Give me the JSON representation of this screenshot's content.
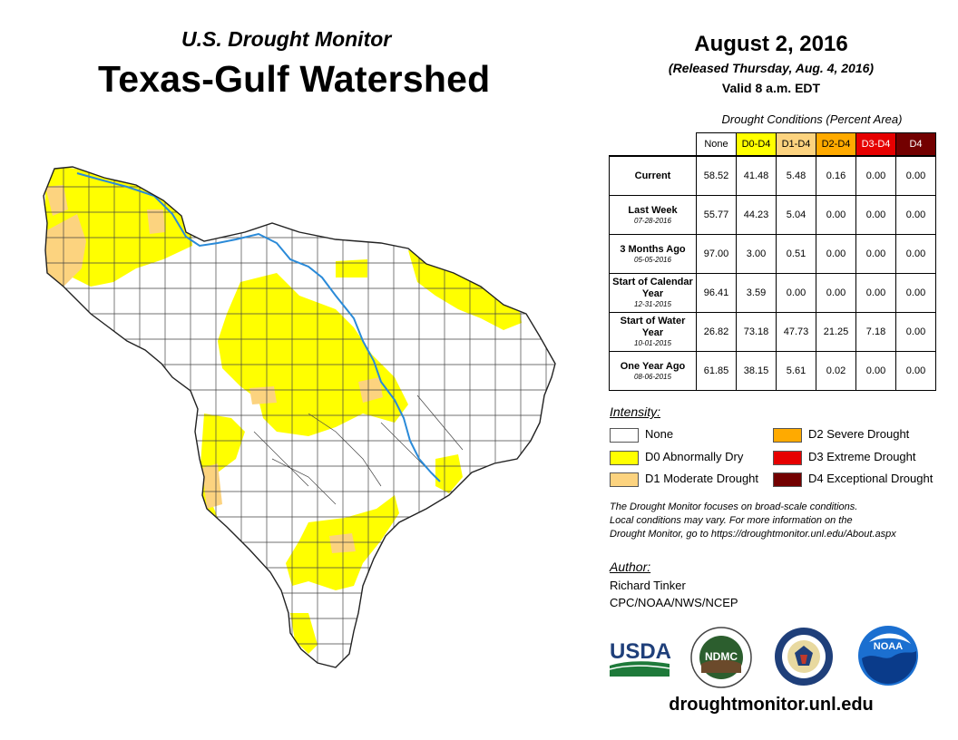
{
  "header": {
    "subtitle": "U.S. Drought Monitor",
    "title": "Texas-Gulf Watershed",
    "date": "August 2, 2016",
    "released": "(Released Thursday, Aug. 4, 2016)",
    "valid": "Valid 8 a.m. EDT"
  },
  "table": {
    "caption": "Drought Conditions (Percent Area)",
    "columns": [
      "None",
      "D0-D4",
      "D1-D4",
      "D2-D4",
      "D3-D4",
      "D4"
    ],
    "column_colors": [
      "#ffffff",
      "#ffff00",
      "#fcd37f",
      "#ffaa00",
      "#e60000",
      "#730000"
    ],
    "rows": [
      {
        "label": "Current",
        "sub": "",
        "values": [
          "58.52",
          "41.48",
          "5.48",
          "0.16",
          "0.00",
          "0.00"
        ]
      },
      {
        "label": "Last Week",
        "sub": "07-28-2016",
        "values": [
          "55.77",
          "44.23",
          "5.04",
          "0.00",
          "0.00",
          "0.00"
        ]
      },
      {
        "label": "3 Months Ago",
        "sub": "05-05-2016",
        "values": [
          "97.00",
          "3.00",
          "0.51",
          "0.00",
          "0.00",
          "0.00"
        ]
      },
      {
        "label": "Start of Calendar Year",
        "sub": "12-31-2015",
        "values": [
          "96.41",
          "3.59",
          "0.00",
          "0.00",
          "0.00",
          "0.00"
        ]
      },
      {
        "label": "Start of Water Year",
        "sub": "10-01-2015",
        "values": [
          "26.82",
          "73.18",
          "47.73",
          "21.25",
          "7.18",
          "0.00"
        ]
      },
      {
        "label": "One Year Ago",
        "sub": "08-06-2015",
        "values": [
          "61.85",
          "38.15",
          "5.61",
          "0.02",
          "0.00",
          "0.00"
        ]
      }
    ]
  },
  "legend": {
    "title": "Intensity:",
    "items": [
      {
        "label": "None",
        "color": "#ffffff"
      },
      {
        "label": "D0 Abnormally Dry",
        "color": "#ffff00"
      },
      {
        "label": "D1 Moderate Drought",
        "color": "#fcd37f"
      },
      {
        "label": "D2 Severe Drought",
        "color": "#ffaa00"
      },
      {
        "label": "D3 Extreme Drought",
        "color": "#e60000"
      },
      {
        "label": "D4 Exceptional Drought",
        "color": "#730000"
      }
    ]
  },
  "note": {
    "line1": "The Drought Monitor focuses on broad-scale conditions.",
    "line2": "Local conditions may vary. For more information on the",
    "line3": "Drought Monitor, go to https://droughtmonitor.unl.edu/About.aspx"
  },
  "author": {
    "label": "Author:",
    "name": "Richard Tinker",
    "org": "CPC/NOAA/NWS/NCEP"
  },
  "logos": {
    "usda": "USDA",
    "ndmc": "NDMC",
    "noaa": "NOAA"
  },
  "website": "droughtmonitor.unl.edu",
  "colors": {
    "river": "#2a8ad8",
    "county_line": "#444444"
  }
}
